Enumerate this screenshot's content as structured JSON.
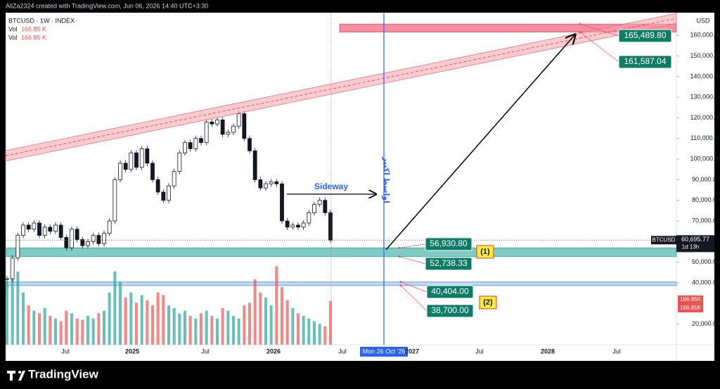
{
  "header": {
    "credit": "AliZa2324 created with TradingView.com, Jun 06, 2026 14:40 UTC+3:30"
  },
  "legend": {
    "symbol": "BTCUSD · 1W · INDEX",
    "vol_rows": [
      {
        "name": "Vol",
        "value": "166.85 K"
      },
      {
        "name": "Vol",
        "value": "166.85 K"
      }
    ]
  },
  "chart_data": {
    "type": "candlestick",
    "close": [
      42000,
      52000,
      63000,
      68000,
      66000,
      69000,
      63000,
      67000,
      65000,
      68000,
      62000,
      57000,
      66000,
      61000,
      58000,
      60000,
      63000,
      59000,
      64000,
      70000,
      90000,
      98000,
      95000,
      103000,
      96000,
      105000,
      98000,
      90000,
      84000,
      80000,
      87000,
      94000,
      103000,
      108000,
      105000,
      110000,
      108000,
      118000,
      117000,
      119000,
      112000,
      113000,
      116000,
      122000,
      110000,
      104000,
      90000,
      86000,
      88000,
      89000,
      88000,
      70000,
      67000,
      68000,
      67000,
      69000,
      74000,
      78000,
      80000,
      74000,
      60695.77
    ],
    "volume": [
      240,
      300,
      280,
      200,
      150,
      130,
      120,
      140,
      110,
      100,
      90,
      130,
      120,
      100,
      95,
      110,
      100,
      120,
      130,
      200,
      280,
      240,
      180,
      200,
      160,
      190,
      170,
      150,
      200,
      190,
      150,
      140,
      120,
      130,
      110,
      100,
      120,
      130,
      110,
      100,
      140,
      130,
      110,
      100,
      150,
      160,
      250,
      200,
      180,
      150,
      300,
      220,
      170,
      140,
      120,
      110,
      100,
      90,
      80,
      70,
      166.85
    ],
    "up_color": "#26a69a",
    "down_color": "#ef5350",
    "ylim": [
      10000,
      171000
    ],
    "y_unit": "USD",
    "yticks": [
      {
        "value": 160000,
        "label": "160,000.00"
      },
      {
        "value": 150000,
        "label": "150,000.00"
      },
      {
        "value": 140000,
        "label": "140,000.00"
      },
      {
        "value": 130000,
        "label": "130,000.00"
      },
      {
        "value": 120000,
        "label": "120,000.00"
      },
      {
        "value": 110000,
        "label": "110,000.00"
      },
      {
        "value": 100000,
        "label": "100,000.00"
      },
      {
        "value": 90000,
        "label": "90,000.00"
      },
      {
        "value": 80000,
        "label": "80,000.00"
      },
      {
        "value": 70000,
        "label": "70,000.00"
      },
      {
        "value": 50000,
        "label": "50,000.00"
      },
      {
        "value": 40000,
        "label": "40,000.00"
      },
      {
        "value": 20000,
        "label": "20,000.00"
      }
    ],
    "xticks": [
      "Jul",
      "2025",
      "Jul",
      "2026",
      "Jul",
      "2027",
      "Jul",
      "2028",
      "Jul"
    ],
    "levels": [
      {
        "value": 165489.8,
        "label": "165,489.80"
      },
      {
        "value": 161587.04,
        "label": "161,587.04"
      },
      {
        "value": 56930.8,
        "label": "56,930.80"
      },
      {
        "value": 52738.33,
        "label": "52,738.33"
      },
      {
        "value": 40404,
        "label": "40,404.00"
      },
      {
        "value": 38700,
        "label": "38,700.00"
      }
    ],
    "zone_labels": [
      "(1)",
      "(2)"
    ],
    "last_price": {
      "value": 60695.77,
      "label": "60,695.77"
    },
    "symbol_tag": "BTCUSD",
    "countdown": "1d 13h",
    "volume_tags": [
      "166.85K",
      "166.85K"
    ],
    "annotations": {
      "sideway": "Sideway",
      "vline_text": "اواسط اکتبر",
      "vline_date": "Mon 26 Oct '26"
    }
  },
  "footer": {
    "brand": "TradingView"
  }
}
